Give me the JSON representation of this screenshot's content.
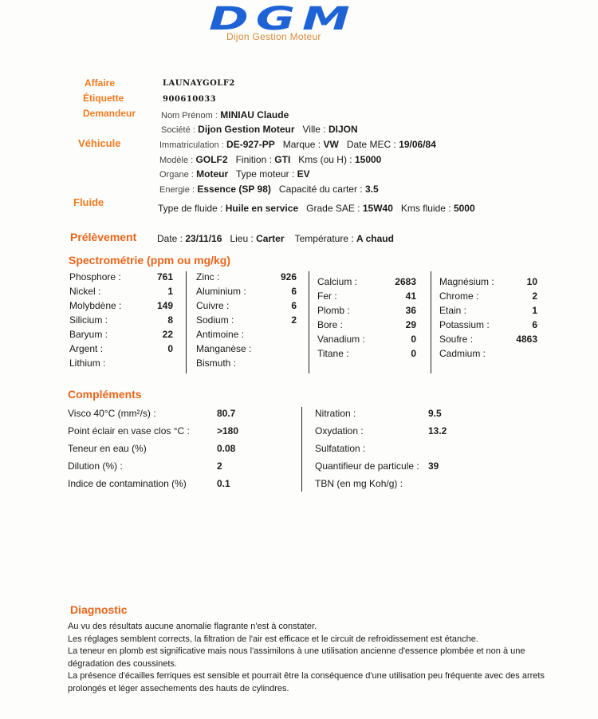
{
  "logo": {
    "main": "DGM",
    "sub": "Dijon Gestion Moteur"
  },
  "affaire": {
    "label": "Affaire",
    "value": "LAUNAYGOLF2"
  },
  "etiquette": {
    "label": "Étiquette",
    "value": "900610033"
  },
  "demandeur": {
    "label": "Demandeur",
    "nom_label": "Nom Prénom :",
    "nom": "MINIAU Claude",
    "societe_label": "Société :",
    "societe": "Dijon Gestion Moteur",
    "ville_label": "Ville :",
    "ville": "DIJON"
  },
  "vehicule": {
    "label": "Véhicule",
    "immat_label": "Immatriculation :",
    "immat": "DE-927-PP",
    "marque_label": "Marque :",
    "marque": "VW",
    "mec_label": "Date MEC :",
    "mec": "19/06/84",
    "modele_label": "Modèle :",
    "modele": "GOLF2",
    "finition_label": "Finition :",
    "finition": "GTI",
    "kms_label": "Kms (ou H) :",
    "kms": "15000",
    "organe_label": "Organe :",
    "organe": "Moteur",
    "type_label": "Type moteur :",
    "type": "EV",
    "energie_label": "Energie :",
    "energie": "Essence (SP 98)",
    "carter_label": "Capacité du carter :",
    "carter": "3.5"
  },
  "fluide": {
    "label": "Fluide",
    "type_label": "Type de fluide :",
    "type": "Huile en service",
    "sae_label": "Grade SAE :",
    "sae": "15W40",
    "kms_label": "Kms fluide :",
    "kms": "5000"
  },
  "prelevement": {
    "label": "Prélèvement",
    "date_label": "Date :",
    "date": "23/11/16",
    "lieu_label": "Lieu :",
    "lieu": "Carter",
    "temp_label": "Température :",
    "temp": "A chaud"
  },
  "spectrometrie": {
    "title": "Spectrométrie (ppm ou mg/kg)",
    "columns": [
      [
        [
          "Phosphore :",
          "761"
        ],
        [
          "Nickel :",
          "1"
        ],
        [
          "Molybdène :",
          "149"
        ],
        [
          "Silicium :",
          "8"
        ],
        [
          "Baryum :",
          "22"
        ],
        [
          "Argent :",
          "0"
        ],
        [
          "Lithium :",
          ""
        ]
      ],
      [
        [
          "Zinc :",
          "926"
        ],
        [
          "Aluminium :",
          "6"
        ],
        [
          "Cuivre :",
          "6"
        ],
        [
          "Sodium :",
          "2"
        ],
        [
          "Antimoine :",
          ""
        ],
        [
          "Manganèse :",
          ""
        ],
        [
          "Bismuth :",
          ""
        ]
      ],
      [
        [
          "Calcium :",
          "2683"
        ],
        [
          "Fer :",
          "41"
        ],
        [
          "Plomb :",
          "36"
        ],
        [
          "Bore :",
          "29"
        ],
        [
          "Vanadium :",
          "0"
        ],
        [
          "Titane :",
          "0"
        ]
      ],
      [
        [
          "Magnésium :",
          "10"
        ],
        [
          "Chrome :",
          "2"
        ],
        [
          "Etain :",
          "1"
        ],
        [
          "Potassium :",
          "6"
        ],
        [
          "Soufre :",
          "4863"
        ],
        [
          "Cadmium :",
          ""
        ]
      ]
    ]
  },
  "complements": {
    "title": "Compléments",
    "left": [
      [
        "Visco 40°C (mm²/s) :",
        "80.7"
      ],
      [
        "Point éclair en vase clos °C :",
        ">180"
      ],
      [
        "Teneur en eau (%)",
        "0.08"
      ],
      [
        "Dilution (%) :",
        "2"
      ],
      [
        "Indice de contamination (%)",
        "0.1"
      ]
    ],
    "right": [
      [
        "Nitration :",
        "9.5"
      ],
      [
        "Oxydation :",
        "13.2"
      ],
      [
        "Sulfatation :",
        ""
      ],
      [
        "Quantifieur de particule :",
        "39"
      ],
      [
        "TBN (en mg Koh/g) :",
        ""
      ]
    ]
  },
  "diagnostic": {
    "title": "Diagnostic",
    "paragraphs": [
      "Au vu des résultats aucune anomalie flagrante n'est à constater.",
      "Les réglages semblent corrects, la filtration de l'air est efficace et le circuit de refroidissement est étanche.",
      "La teneur en plomb est significative mais nous l'assimilons à une utilisation ancienne d'essence plombée et non à une dégradation des coussinets.",
      "La présence d'écailles ferriques est sensible et pourrait être la conséquence d'une utilisation peu fréquente avec des arrets prolongés et léger assechements des hauts de cylindres."
    ]
  }
}
